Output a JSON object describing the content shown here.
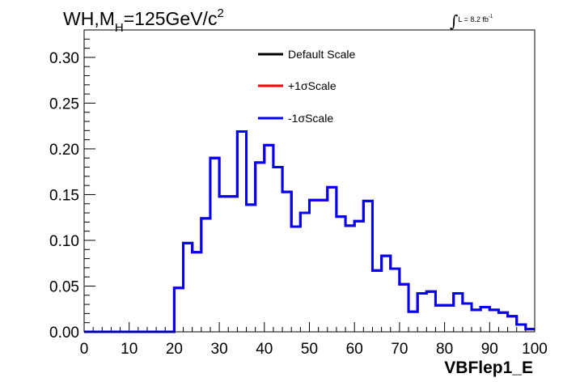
{
  "header": {
    "process": "WH,M",
    "mass_sub": "H",
    "mass_value": "=125GeV/c",
    "mass_sup": "2",
    "lumi_integral": "∫",
    "lumi_text": "L = 8.2 fb",
    "lumi_sup": "-1"
  },
  "colors": {
    "default_scale": "#000000",
    "plus_sigma": "#ff0000",
    "minus_sigma": "#0000ff",
    "axis": "#000000"
  },
  "chart_data": {
    "type": "line",
    "title": "",
    "xlabel": "VBFlep1_E",
    "ylabel": "",
    "xlim": [
      0,
      100
    ],
    "ylim": [
      0,
      0.33
    ],
    "x_ticks": [
      "0",
      "10",
      "20",
      "30",
      "40",
      "50",
      "60",
      "70",
      "80",
      "90",
      "100"
    ],
    "y_ticks": [
      "0.00",
      "0.05",
      "0.10",
      "0.15",
      "0.20",
      "0.25",
      "0.30"
    ],
    "legend_position": "top-center",
    "bin_edges": [
      0,
      2,
      4,
      6,
      8,
      10,
      12,
      14,
      16,
      18,
      20,
      22,
      24,
      26,
      28,
      30,
      32,
      34,
      36,
      38,
      40,
      42,
      44,
      46,
      48,
      50,
      52,
      54,
      56,
      58,
      60,
      62,
      64,
      66,
      68,
      70,
      72,
      74,
      76,
      78,
      80,
      82,
      84,
      86,
      88,
      90,
      92,
      94,
      96,
      98,
      100
    ],
    "series": [
      {
        "name": "Default Scale",
        "color": "#000000",
        "values": [
          0,
          0,
          0,
          0,
          0,
          0,
          0,
          0,
          0,
          0,
          0.048,
          0.097,
          0.087,
          0.124,
          0.19,
          0.148,
          0.148,
          0.219,
          0.139,
          0.185,
          0.204,
          0.18,
          0.153,
          0.115,
          0.13,
          0.144,
          0.144,
          0.158,
          0.126,
          0.116,
          0.121,
          0.143,
          0.067,
          0.083,
          0.069,
          0.052,
          0.022,
          0.042,
          0.044,
          0.029,
          0.029,
          0.042,
          0.031,
          0.024,
          0.027,
          0.024,
          0.021,
          0.017,
          0.008,
          0.003
        ]
      },
      {
        "name": "+1σScale",
        "color": "#ff0000",
        "values": [
          0,
          0,
          0,
          0,
          0,
          0,
          0,
          0,
          0,
          0,
          0.048,
          0.097,
          0.087,
          0.124,
          0.19,
          0.148,
          0.148,
          0.219,
          0.139,
          0.185,
          0.204,
          0.18,
          0.153,
          0.115,
          0.13,
          0.144,
          0.144,
          0.158,
          0.126,
          0.116,
          0.121,
          0.143,
          0.067,
          0.083,
          0.069,
          0.052,
          0.022,
          0.042,
          0.044,
          0.029,
          0.029,
          0.042,
          0.031,
          0.024,
          0.027,
          0.024,
          0.021,
          0.017,
          0.008,
          0.003
        ]
      },
      {
        "name": "-1σScale",
        "color": "#0000ff",
        "values": [
          0,
          0,
          0,
          0,
          0,
          0,
          0,
          0,
          0,
          0,
          0.048,
          0.097,
          0.087,
          0.124,
          0.19,
          0.148,
          0.148,
          0.219,
          0.139,
          0.185,
          0.204,
          0.18,
          0.153,
          0.115,
          0.13,
          0.144,
          0.144,
          0.158,
          0.126,
          0.116,
          0.121,
          0.143,
          0.067,
          0.083,
          0.069,
          0.052,
          0.022,
          0.042,
          0.044,
          0.029,
          0.029,
          0.042,
          0.031,
          0.024,
          0.027,
          0.024,
          0.021,
          0.017,
          0.008,
          0.003
        ]
      }
    ]
  }
}
